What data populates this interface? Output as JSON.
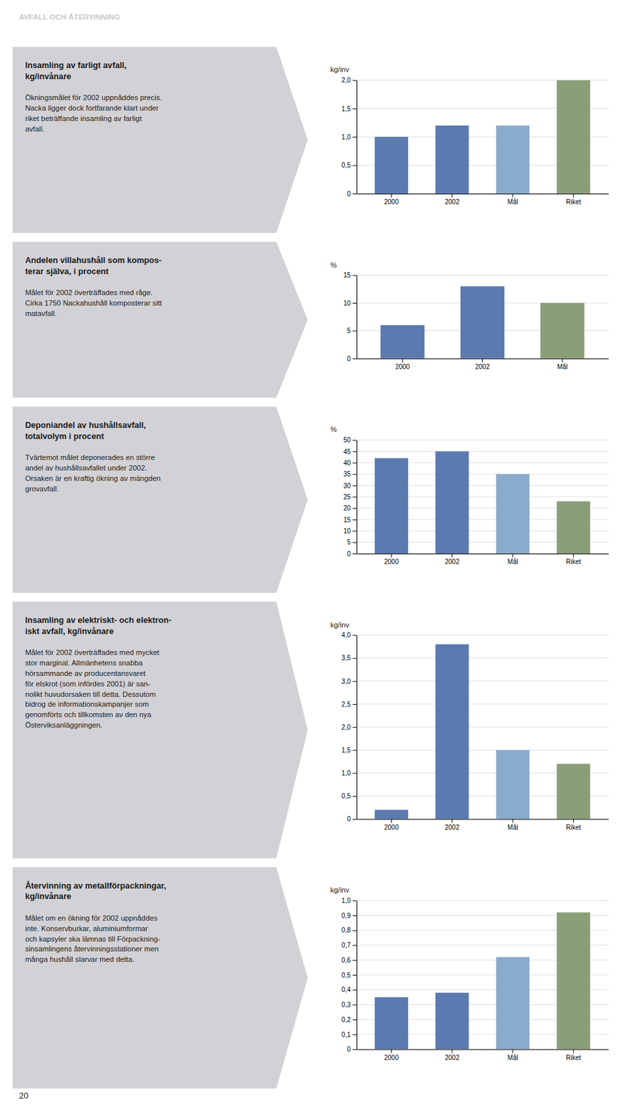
{
  "title": "AVFALL OCH ÅTERVINNING",
  "annotations": [
    "20"
  ],
  "chart_data": [
    {
      "type": "bar",
      "title": "Insamling av farligt avfall,\nkg/invånare",
      "annotations": [
        "Ökningsmålet för 2002 uppnåddes precis.\nNacka ligger dock fortfarande klart under\nriket beträffande insamling av farligt\navfall."
      ],
      "ylabel": "kg/inv",
      "categories": [
        "2000",
        "2002",
        "Mål",
        "Riket"
      ],
      "values": [
        1.0,
        1.2,
        1.2,
        2.0
      ],
      "colors": [
        "#5a7ab0",
        "#5a7ab0",
        "#8aabcc",
        "#8a9e78"
      ],
      "ylim": [
        0,
        2.0
      ],
      "yticks": [
        0,
        {
          "value": 0.5,
          "label": "0,5"
        },
        {
          "value": 1.0,
          "label": "1,0"
        },
        {
          "value": 1.5,
          "label": "1,5"
        },
        {
          "value": 2.0,
          "label": "2,0"
        }
      ],
      "grid": true
    },
    {
      "type": "bar",
      "title": "Andelen villahushåll som kompos-\nterar själva, i procent",
      "annotations": [
        "Målet för 2002 överträffades med råge.\nCirka 1750 Nackahushåll komposterar sitt\nmatavfall."
      ],
      "ylabel": "%",
      "categories": [
        "2000",
        "2002",
        "Mål"
      ],
      "values": [
        6,
        13,
        10
      ],
      "colors": [
        "#5a7ab0",
        "#5a7ab0",
        "#8a9e78"
      ],
      "ylim": [
        0,
        15
      ],
      "yticks": [
        0,
        5,
        10,
        15
      ],
      "grid": true
    },
    {
      "type": "bar",
      "title": "Deponiandel av hushållsavfall,\ntotalvolym i procent",
      "annotations": [
        "Tvärtemot målet deponerades en större\nandel av hushållsavfallet under 2002.\nOrsaken är en kraftig ökning av mängden\ngrovavfall."
      ],
      "ylabel": "%",
      "categories": [
        "2000",
        "2002",
        "Mål",
        "Riket"
      ],
      "values": [
        42,
        45,
        35,
        23
      ],
      "colors": [
        "#5a7ab0",
        "#5a7ab0",
        "#8aabcc",
        "#8a9e78"
      ],
      "ylim": [
        0,
        50
      ],
      "yticks": [
        0,
        5,
        10,
        15,
        20,
        25,
        30,
        35,
        40,
        45,
        50
      ],
      "grid": true
    },
    {
      "type": "bar",
      "title": "Insamling av elektriskt- och elektron-\niskt avfall, kg/invånare",
      "annotations": [
        "Målet för 2002 överträffades med mycket\nstor marginal. Allmänhetens snabba\nhörsammande av producentansvaret\nför elskrot (som infördes 2001) är san-\nnolikt huvudorsaken till detta. Dessutom\nbidrog de informationskampanjer som\ngenomförts och tillkomsten av den nya\nÖsterviksanläggningen."
      ],
      "ylabel": "kg/inv",
      "categories": [
        "2000",
        "2002",
        "Mål",
        "Riket"
      ],
      "values": [
        0.2,
        3.8,
        1.5,
        1.2
      ],
      "colors": [
        "#5a7ab0",
        "#5a7ab0",
        "#8aabcc",
        "#8a9e78"
      ],
      "ylim": [
        0,
        4.0
      ],
      "yticks": [
        0,
        {
          "value": 0.5,
          "label": "0,5"
        },
        {
          "value": 1.0,
          "label": "1,0"
        },
        {
          "value": 1.5,
          "label": "1,5"
        },
        {
          "value": 2.0,
          "label": "2,0"
        },
        {
          "value": 2.5,
          "label": "2,5"
        },
        {
          "value": 3.0,
          "label": "3,0"
        },
        {
          "value": 3.5,
          "label": "3,5"
        },
        {
          "value": 4.0,
          "label": "4,0"
        }
      ],
      "grid": true
    },
    {
      "type": "bar",
      "title": "Återvinning av metallförpackningar,\nkg/invånare",
      "annotations": [
        "Målet om en ökning för 2002 uppnåddes\ninte. Konservburkar, aluminiumformar\noch kapsyler ska lämnas till Förpackning-\nsinsamlingens återvinningsstationer men\nmånga hushåll slarvar med detta."
      ],
      "ylabel": "kg/inv",
      "categories": [
        "2000",
        "2002",
        "Mål",
        "Riket"
      ],
      "values": [
        0.35,
        0.38,
        0.62,
        0.92
      ],
      "colors": [
        "#5a7ab0",
        "#5a7ab0",
        "#8aabcc",
        "#8a9e78"
      ],
      "ylim": [
        0,
        1.0
      ],
      "yticks": [
        0,
        {
          "value": 0.1,
          "label": "0,1"
        },
        {
          "value": 0.2,
          "label": "0,2"
        },
        {
          "value": 0.3,
          "label": "0,3"
        },
        {
          "value": 0.4,
          "label": "0,4"
        },
        {
          "value": 0.5,
          "label": "0,5"
        },
        {
          "value": 0.6,
          "label": "0,6"
        },
        {
          "value": 0.7,
          "label": "0,7"
        },
        {
          "value": 0.8,
          "label": "0,8"
        },
        {
          "value": 0.9,
          "label": "0,9"
        },
        {
          "value": 1.0,
          "label": "1,0"
        }
      ],
      "grid": true
    }
  ]
}
